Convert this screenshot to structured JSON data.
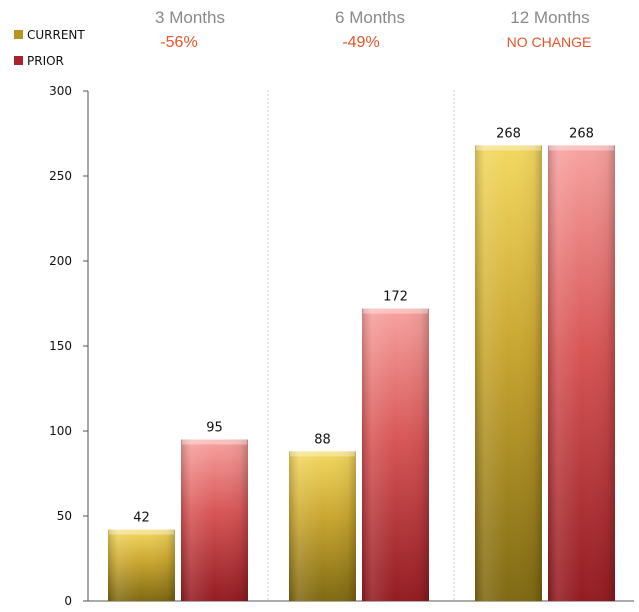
{
  "legend": [
    {
      "label": "CURRENT",
      "color": "#b8951c"
    },
    {
      "label": "PRIOR",
      "color": "#a8242a"
    }
  ],
  "groups": [
    {
      "title": "3 Months",
      "change": "-56%"
    },
    {
      "title": "6 Months",
      "change": "-49%"
    },
    {
      "title": "12 Months",
      "change": "NO CHANGE"
    }
  ],
  "colors": {
    "current_light": "#f3d860",
    "current_mid": "#c9a630",
    "current_dark": "#7f6912",
    "prior_light": "#f7a3a0",
    "prior_mid": "#d85656",
    "prior_dark": "#931c22",
    "change_text": "#e8532a",
    "title_text": "#8a8a8a",
    "divider": "#cccccc"
  },
  "chart_data": {
    "type": "bar",
    "categories": [
      "3 Months",
      "6 Months",
      "12 Months"
    ],
    "series": [
      {
        "name": "CURRENT",
        "values": [
          42,
          88,
          268
        ]
      },
      {
        "name": "PRIOR",
        "values": [
          95,
          172,
          268
        ]
      }
    ],
    "ylim": [
      0,
      300
    ],
    "yticks": [
      0,
      50,
      100,
      150,
      200,
      250,
      300
    ],
    "data_labels": [
      [
        "42",
        "95"
      ],
      [
        "88",
        "172"
      ],
      [
        "268",
        "268"
      ]
    ],
    "legend_position": "top-left",
    "grid": false
  }
}
